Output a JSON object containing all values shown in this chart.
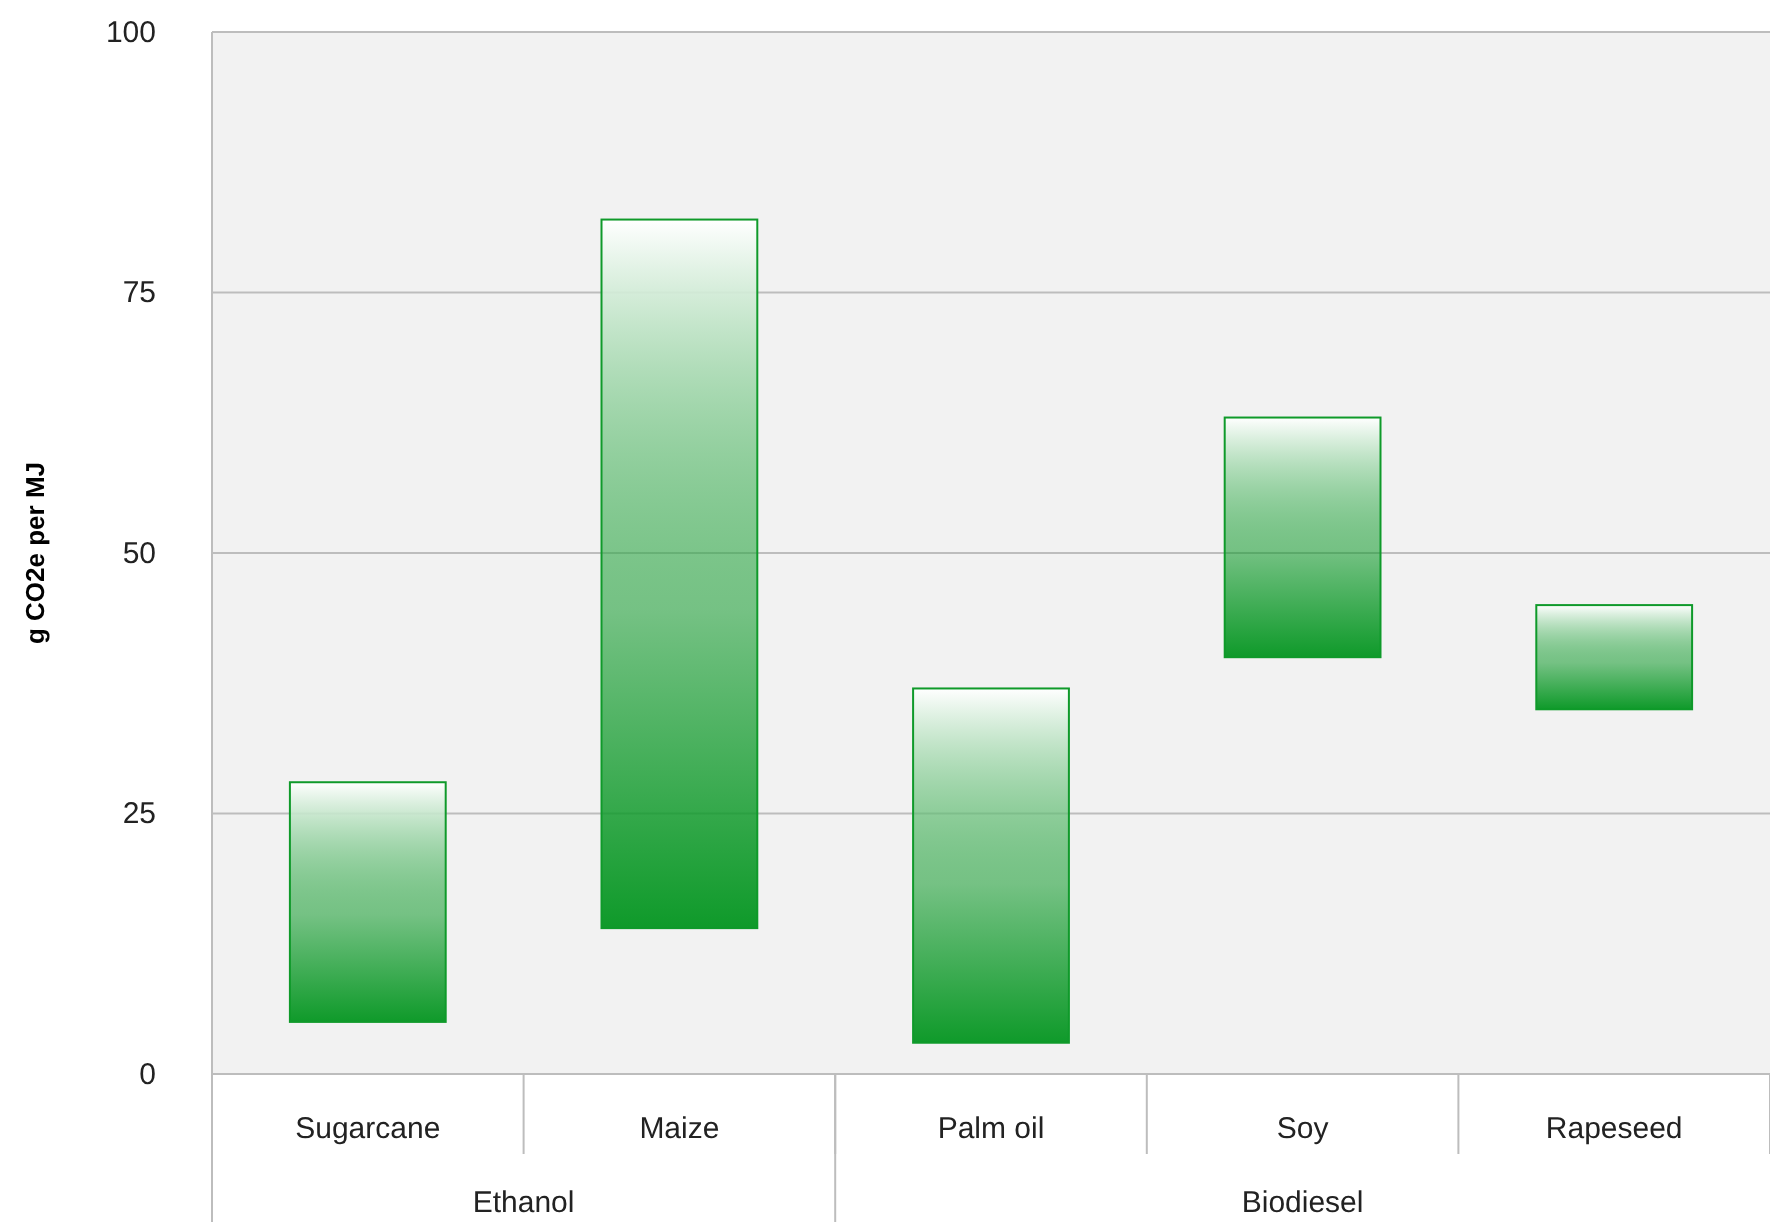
{
  "chart_data": {
    "type": "bar",
    "ylabel": "g CO2e per MJ",
    "categories": [
      "Sugarcane",
      "Maize",
      "Palm oil",
      "Soy",
      "Rapeseed"
    ],
    "values": [
      23,
      68,
      34,
      23,
      10
    ],
    "base": [
      5,
      14,
      3,
      40,
      35
    ],
    "color": "#0f9a2a",
    "ylim": [
      0,
      100
    ],
    "yticks": [
      0,
      25,
      50,
      75,
      100
    ],
    "grid": "y",
    "annotations": [
      "Ethanol",
      "Biodiesel"
    ]
  }
}
